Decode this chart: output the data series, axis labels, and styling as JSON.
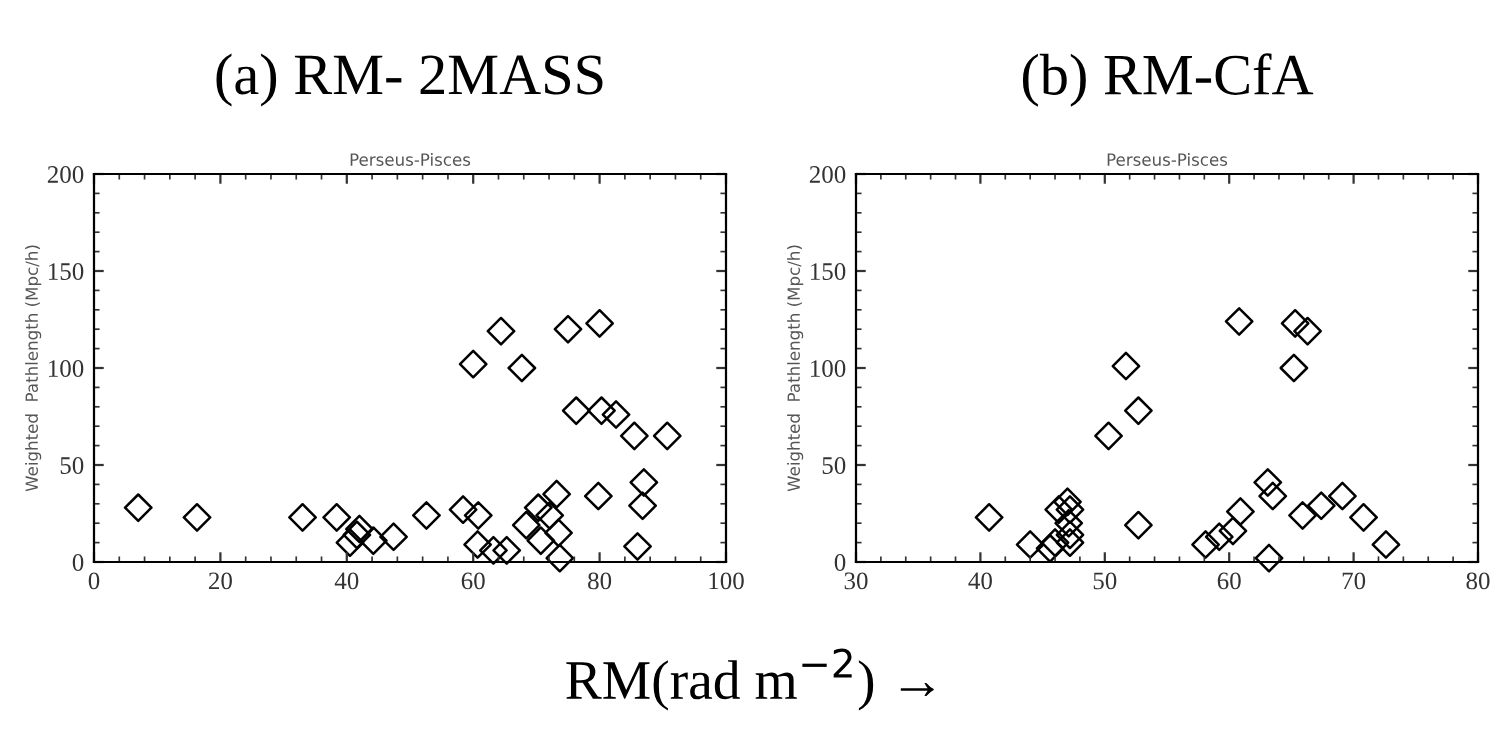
{
  "chart_data": [
    {
      "type": "scatter",
      "title": "(a) RM- 2MASS",
      "subtitle": "Perseus-Pisces",
      "ylabel": "Weighted  Pathlength (Mpc/h)",
      "annotations": [
        "RM(rad m$^{−2}$) →"
      ],
      "marker": "diamond",
      "xlim": [
        0,
        100
      ],
      "ylim": [
        0,
        200
      ],
      "xticks": [
        0,
        20,
        40,
        60,
        80,
        100
      ],
      "yticks": [
        0,
        50,
        100,
        150,
        200
      ],
      "grid": false,
      "legend": false,
      "series": [
        {
          "color": "#000000",
          "x": [
            7,
            16.3,
            33,
            38.4,
            40.5,
            41.6,
            42,
            44.2,
            47.4,
            52.6,
            58.4,
            60.8,
            60,
            60.7,
            63.2,
            65.3,
            64.4,
            67.7,
            68.4,
            70.3,
            70.7,
            72.1,
            73.5,
            73.2,
            73.7,
            75,
            76.3,
            80,
            79.8,
            80.3,
            82.6,
            85.5,
            86,
            87,
            86.8,
            90.7
          ],
          "values": [
            28,
            23,
            23,
            23,
            10,
            14,
            17,
            11,
            13,
            24,
            27,
            24,
            102,
            9,
            6,
            6,
            119,
            100,
            19,
            28,
            11,
            24,
            15,
            35,
            2,
            120,
            78,
            123,
            34,
            78,
            76,
            65,
            8,
            41,
            29,
            65
          ]
        }
      ]
    },
    {
      "type": "scatter",
      "title": "(b) RM-CfA",
      "subtitle": "Perseus-Pisces",
      "ylabel": "Weighted  Pathlength (Mpc/h)",
      "marker": "diamond",
      "xlim": [
        30,
        80
      ],
      "ylim": [
        0,
        200
      ],
      "xticks": [
        30,
        40,
        50,
        60,
        70,
        80
      ],
      "yticks": [
        0,
        50,
        100,
        150,
        200
      ],
      "grid": false,
      "legend": false,
      "series": [
        {
          "color": "#000000",
          "x": [
            40.7,
            44,
            45.6,
            46,
            46.3,
            47,
            47.1,
            47.2,
            47.2,
            47.2,
            50.3,
            51.7,
            52.7,
            52.7,
            58.1,
            59.2,
            60.3,
            60.9,
            60.8,
            63.2,
            63.1,
            63.5,
            65.2,
            65.3,
            66.3,
            65.9,
            67.4,
            69.1,
            70.8,
            72.6
          ],
          "values": [
            23,
            9,
            7,
            10,
            27,
            31,
            20,
            14,
            27,
            10,
            65,
            101,
            78,
            19,
            9,
            13,
            16,
            26,
            124,
            2,
            41,
            34,
            100,
            123,
            119,
            24,
            29,
            34,
            23,
            9
          ]
        }
      ]
    }
  ]
}
